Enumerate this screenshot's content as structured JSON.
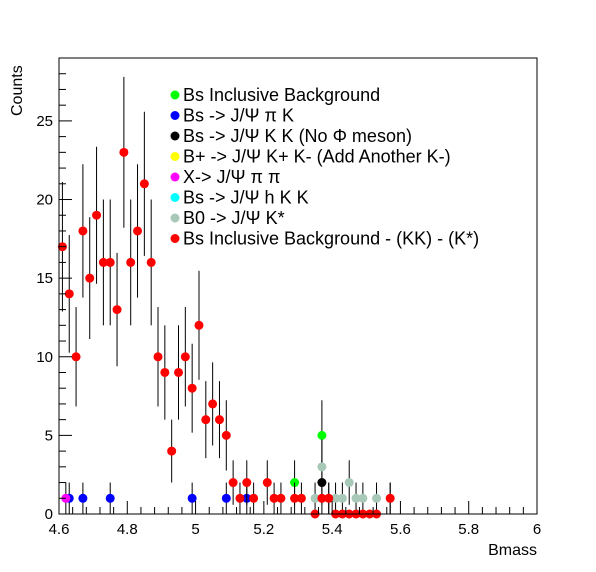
{
  "chart_data": {
    "type": "scatter",
    "title": "",
    "xlabel": "Bmass",
    "ylabel": "Counts",
    "xlim": [
      4.6,
      6.0
    ],
    "ylim": [
      0,
      29
    ],
    "x_ticks": [
      "4.6",
      "4.8",
      "5",
      "5.2",
      "5.4",
      "5.6",
      "5.8",
      "6"
    ],
    "y_ticks": [
      "0",
      "5",
      "10",
      "15",
      "20",
      "25"
    ],
    "legend_position": "top-right",
    "series": [
      {
        "name": "Bs Inclusive Background",
        "color": "#00ff00",
        "points": [
          [
            5.29,
            2
          ],
          [
            5.37,
            5
          ]
        ]
      },
      {
        "name": "Bs -> J/Ψ  π K",
        "color": "#0000ff",
        "points": [
          [
            4.63,
            1
          ],
          [
            4.67,
            1
          ],
          [
            4.75,
            1
          ],
          [
            4.99,
            1
          ],
          [
            5.09,
            1
          ],
          [
            5.15,
            1
          ]
        ]
      },
      {
        "name": "Bs -> J/Ψ  K K (No Φ meson)",
        "color": "#000000",
        "points": [
          [
            5.37,
            2
          ]
        ]
      },
      {
        "name": "B+ ->  J/Ψ  K+ K- (Add Another K-)",
        "color": "#ffff00",
        "points": []
      },
      {
        "name": "X-> J/Ψ π π",
        "color": "#ff00ff",
        "points": [
          [
            4.62,
            1
          ]
        ]
      },
      {
        "name": "Bs -> J/Ψ h K K",
        "color": "#00ffff",
        "points": []
      },
      {
        "name": "B0 -> J/Ψ K*",
        "color": "#a8c8b8",
        "points": [
          [
            5.35,
            1
          ],
          [
            5.37,
            3
          ],
          [
            5.39,
            1
          ],
          [
            5.41,
            1
          ],
          [
            5.43,
            1
          ],
          [
            5.45,
            2
          ],
          [
            5.47,
            1
          ],
          [
            5.49,
            1
          ],
          [
            5.53,
            1
          ],
          [
            5.57,
            1
          ]
        ]
      },
      {
        "name": "Bs Inclusive Background - (KK) - (K*)",
        "color": "#ff0000",
        "points": [
          [
            4.61,
            17
          ],
          [
            4.63,
            14
          ],
          [
            4.65,
            10
          ],
          [
            4.67,
            18
          ],
          [
            4.69,
            15
          ],
          [
            4.71,
            19
          ],
          [
            4.73,
            16
          ],
          [
            4.75,
            16
          ],
          [
            4.77,
            13
          ],
          [
            4.79,
            23
          ],
          [
            4.81,
            16
          ],
          [
            4.83,
            18
          ],
          [
            4.85,
            21
          ],
          [
            4.87,
            16
          ],
          [
            4.89,
            10
          ],
          [
            4.91,
            9
          ],
          [
            4.93,
            4
          ],
          [
            4.95,
            9
          ],
          [
            4.97,
            10
          ],
          [
            4.99,
            8
          ],
          [
            5.01,
            12
          ],
          [
            5.03,
            6
          ],
          [
            5.05,
            7
          ],
          [
            5.07,
            6
          ],
          [
            5.09,
            5
          ],
          [
            5.11,
            2
          ],
          [
            5.13,
            1
          ],
          [
            5.15,
            2
          ],
          [
            5.17,
            1
          ],
          [
            5.21,
            2
          ],
          [
            5.23,
            1
          ],
          [
            5.25,
            1
          ],
          [
            5.29,
            1
          ],
          [
            5.31,
            1
          ],
          [
            5.35,
            0
          ],
          [
            5.37,
            1
          ],
          [
            5.39,
            1
          ],
          [
            5.41,
            0
          ],
          [
            5.43,
            0
          ],
          [
            5.45,
            0
          ],
          [
            5.47,
            0
          ],
          [
            5.49,
            0
          ],
          [
            5.51,
            0
          ],
          [
            5.53,
            0
          ],
          [
            5.57,
            1
          ]
        ]
      }
    ]
  }
}
